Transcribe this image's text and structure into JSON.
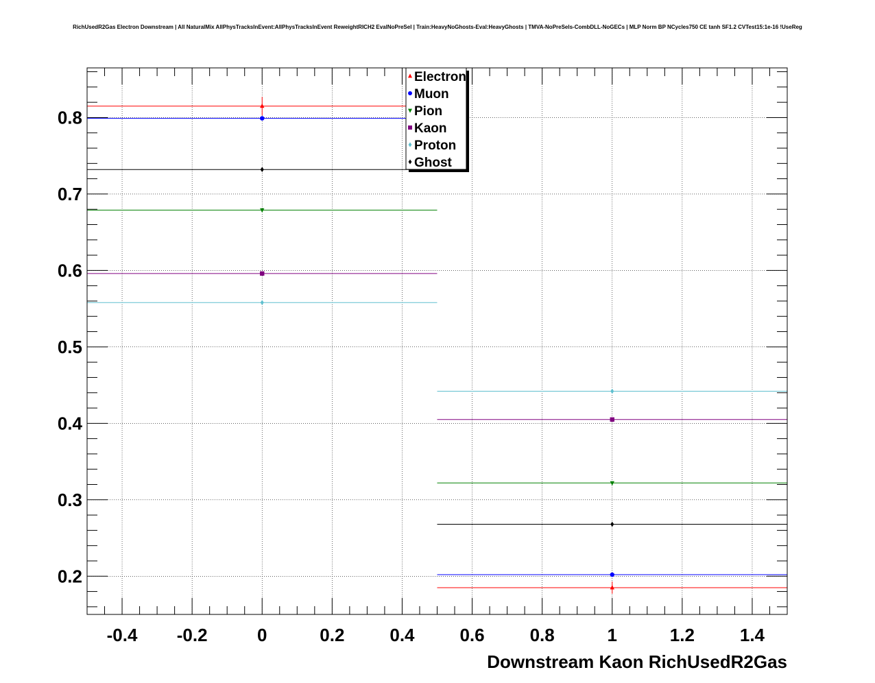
{
  "chart_data": {
    "type": "scatter",
    "title": "RichUsedR2Gas Electron Downstream | All NaturalMix AllPhysTracksInEvent:AllPhysTracksInEvent ReweightRICH2 EvalNoPreSel | Train:HeavyNoGhosts-Eval:HeavyGhosts | TMVA-NoPreSels-CombDLL-NoGECs | MLP Norm BP NCycles750 CE tanh SF1.2 CVTest15:1e-16 !UseReg",
    "xlabel": "Downstream Kaon RichUsedR2Gas",
    "ylabel": "",
    "xlim": [
      -0.5,
      1.5
    ],
    "ylim": [
      0.15,
      0.865
    ],
    "x_ticks": [
      -0.4,
      -0.2,
      0,
      0.2,
      0.4,
      0.6,
      0.8,
      1,
      1.2,
      1.4
    ],
    "x_tick_labels": [
      "-0.4",
      "-0.2",
      "0",
      "0.2",
      "0.4",
      "0.6",
      "0.8",
      "1",
      "1.2",
      "1.4"
    ],
    "y_ticks": [
      0.2,
      0.3,
      0.4,
      0.5,
      0.6,
      0.7,
      0.8
    ],
    "y_tick_labels": [
      "0.2",
      "0.3",
      "0.4",
      "0.5",
      "0.6",
      "0.7",
      "0.8"
    ],
    "grid": true,
    "legend_position": "top-center",
    "bins": [
      [
        -0.5,
        0.5
      ],
      [
        0.5,
        1.5
      ]
    ],
    "x": [
      0,
      1
    ],
    "series": [
      {
        "name": "Electron",
        "color": "#ff0000",
        "marker": "triangle-up",
        "values": [
          0.815,
          0.185
        ],
        "errors": [
          0.012,
          0.008
        ]
      },
      {
        "name": "Muon",
        "color": "#0000ff",
        "marker": "circle",
        "values": [
          0.799,
          0.202
        ],
        "errors": [
          0.003,
          0.003
        ]
      },
      {
        "name": "Pion",
        "color": "#008000",
        "marker": "triangle-down",
        "values": [
          0.679,
          0.322
        ],
        "errors": [
          0.002,
          0.002
        ]
      },
      {
        "name": "Kaon",
        "color": "#800080",
        "marker": "square",
        "values": [
          0.596,
          0.405
        ],
        "errors": [
          0.002,
          0.002
        ]
      },
      {
        "name": "Proton",
        "color": "#5fbfcf",
        "marker": "diamond",
        "values": [
          0.558,
          0.442
        ],
        "errors": [
          0.002,
          0.002
        ]
      },
      {
        "name": "Ghost",
        "color": "#000000",
        "marker": "diamond",
        "values": [
          0.732,
          0.268
        ],
        "errors": [
          0.001,
          0.001
        ]
      }
    ]
  }
}
